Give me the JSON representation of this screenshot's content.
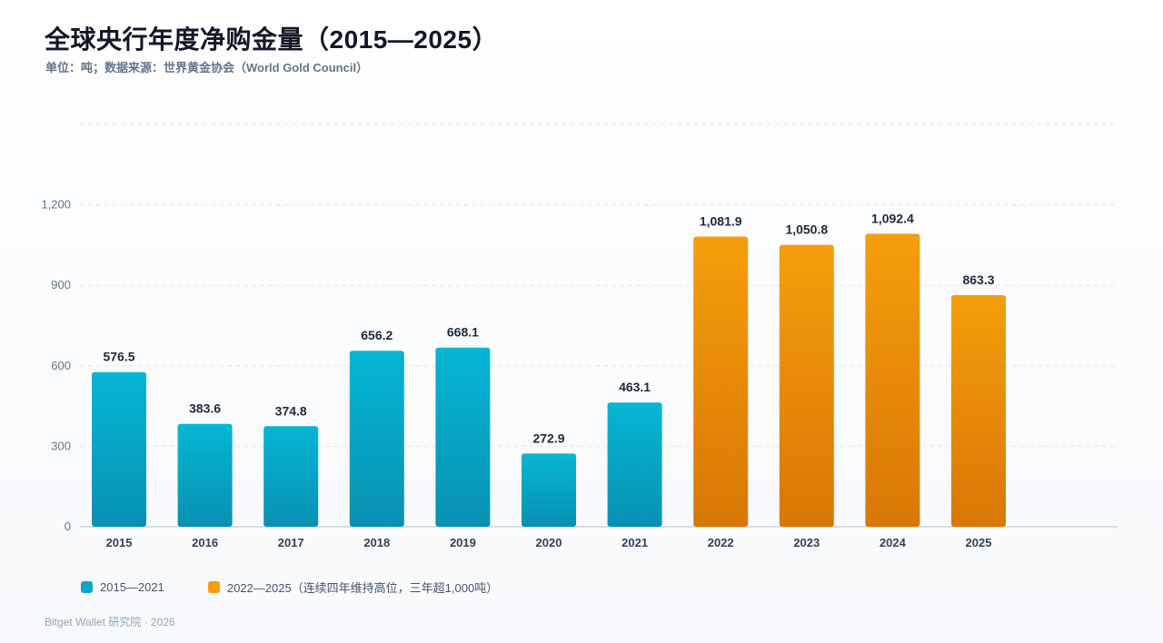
{
  "header": {
    "title": "全球央行年度净购金量（2015—2025）",
    "subtitle": "单位：吨；数据来源：世界黄金协会（World Gold Council）"
  },
  "chart_data": {
    "type": "bar",
    "categories": [
      "2015",
      "2016",
      "2017",
      "2018",
      "2019",
      "2020",
      "2021",
      "2022",
      "2023",
      "2024",
      "2025"
    ],
    "values": [
      576.5,
      383.6,
      374.8,
      656.2,
      668.1,
      272.9,
      463.1,
      1081.9,
      1050.8,
      1092.4,
      863.3
    ],
    "value_labels": [
      "576.5",
      "383.6",
      "374.8",
      "656.2",
      "668.1",
      "272.9",
      "463.1",
      "1,081.9",
      "1,050.8",
      "1,092.4",
      "863.3"
    ],
    "groups": [
      0,
      0,
      0,
      0,
      0,
      0,
      0,
      1,
      1,
      1,
      1
    ],
    "yticks": [
      0,
      300,
      600,
      900,
      1200
    ],
    "ytick_labels": [
      "0",
      "300",
      "600",
      "900",
      "1,200"
    ],
    "ylim": [
      0,
      1500
    ],
    "grid": true,
    "legend_position": "bottom-left",
    "colors": {
      "teal_top": "#06b6d4",
      "teal_bottom": "#0891b2",
      "orange_top": "#f59e0b",
      "orange_bottom": "#d97706",
      "grid": "#e5e7eb",
      "axis": "#cbd5e1"
    }
  },
  "legend": [
    {
      "label": "2015—2021",
      "color": "#0ea5c6"
    },
    {
      "label": "2022—2025（连续四年维持高位，三年超1,000吨）",
      "color": "#f59e0b"
    }
  ],
  "footer": "Bitget Wallet 研究院 · 2026"
}
